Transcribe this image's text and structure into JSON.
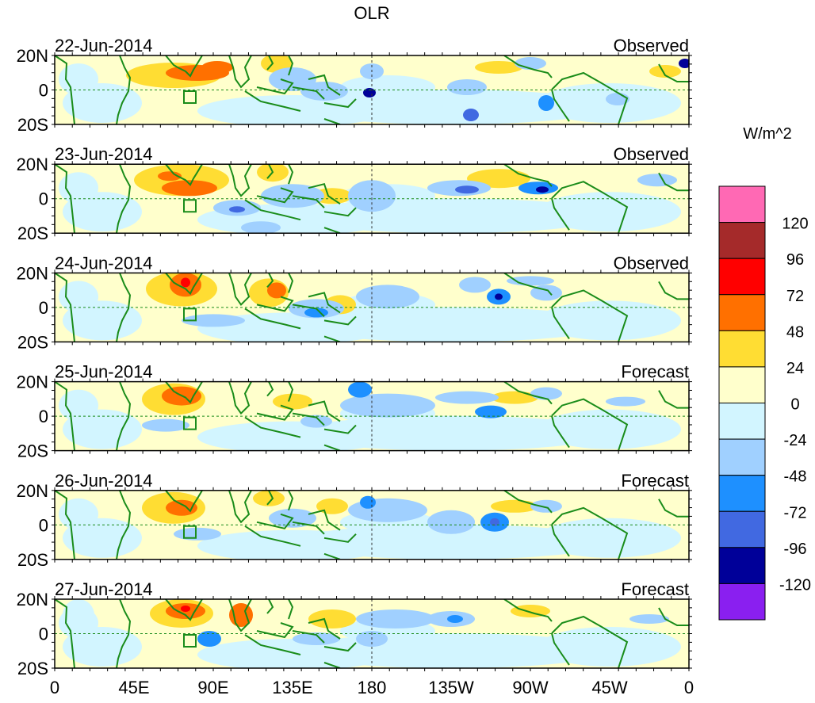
{
  "title": "OLR",
  "units": "W/m^2",
  "panels": [
    {
      "date": "22-Jun-2014",
      "kind": "Observed"
    },
    {
      "date": "23-Jun-2014",
      "kind": "Observed"
    },
    {
      "date": "24-Jun-2014",
      "kind": "Observed"
    },
    {
      "date": "25-Jun-2014",
      "kind": "Forecast"
    },
    {
      "date": "26-Jun-2014",
      "kind": "Forecast"
    },
    {
      "date": "27-Jun-2014",
      "kind": "Forecast"
    }
  ],
  "y_ticks": [
    "20N",
    "0",
    "20S"
  ],
  "x_ticks": [
    "0",
    "45E",
    "90E",
    "135E",
    "180",
    "135W",
    "90W",
    "45W",
    "0"
  ],
  "colorbar": {
    "colors": [
      "#ff69b4",
      "#a52a2a",
      "#ff0000",
      "#ff7000",
      "#ffdd33",
      "#ffffcc",
      "#d2f5ff",
      "#a0d0ff",
      "#1e90ff",
      "#4169e1",
      "#000099",
      "#8a1ff0"
    ],
    "labels": [
      "120",
      "96",
      "72",
      "48",
      "24",
      "0",
      "-24",
      "-48",
      "-72",
      "-96",
      "-120"
    ]
  },
  "coast_color": "#1a8c1a"
}
